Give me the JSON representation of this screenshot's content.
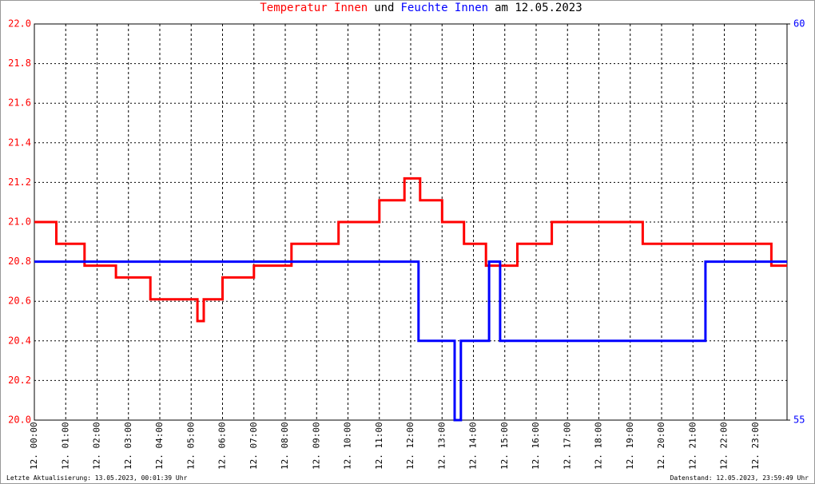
{
  "chart_data": {
    "type": "line",
    "title_parts": [
      {
        "text": "Temperatur Innen",
        "color": "#ff0000"
      },
      {
        "text": "und",
        "color": "#000000"
      },
      {
        "text": "Feuchte Innen",
        "color": "#0000ff"
      },
      {
        "text": "am 12.05.2023",
        "color": "#000000"
      }
    ],
    "footer_left": "Letzte Aktualisierung: 13.05.2023, 00:01:39 Uhr",
    "footer_right": "Datenstand: 12.05.2023, 23:59:49 Uhr",
    "grid": true,
    "xlim": [
      0,
      24
    ],
    "xticks": [
      {
        "value": 0,
        "label": "12. 00:00"
      },
      {
        "value": 1,
        "label": "12. 01:00"
      },
      {
        "value": 2,
        "label": "12. 02:00"
      },
      {
        "value": 3,
        "label": "12. 03:00"
      },
      {
        "value": 4,
        "label": "12. 04:00"
      },
      {
        "value": 5,
        "label": "12. 05:00"
      },
      {
        "value": 6,
        "label": "12. 06:00"
      },
      {
        "value": 7,
        "label": "12. 07:00"
      },
      {
        "value": 8,
        "label": "12. 08:00"
      },
      {
        "value": 9,
        "label": "12. 09:00"
      },
      {
        "value": 10,
        "label": "12. 10:00"
      },
      {
        "value": 11,
        "label": "12. 11:00"
      },
      {
        "value": 12,
        "label": "12. 12:00"
      },
      {
        "value": 13,
        "label": "12. 13:00"
      },
      {
        "value": 14,
        "label": "12. 14:00"
      },
      {
        "value": 15,
        "label": "12. 15:00"
      },
      {
        "value": 16,
        "label": "12. 16:00"
      },
      {
        "value": 17,
        "label": "12. 17:00"
      },
      {
        "value": 18,
        "label": "12. 18:00"
      },
      {
        "value": 19,
        "label": "12. 19:00"
      },
      {
        "value": 20,
        "label": "12. 20:00"
      },
      {
        "value": 21,
        "label": "12. 21:00"
      },
      {
        "value": 22,
        "label": "12. 22:00"
      },
      {
        "value": 23,
        "label": "12. 23:00"
      }
    ],
    "ylim": [
      20,
      22
    ],
    "yticks": [
      {
        "value": 20,
        "label": "20.0"
      },
      20.2,
      20.4,
      20.6,
      20.8,
      {
        "value": 21,
        "label": "21.0"
      },
      21.2,
      21.4,
      21.6,
      21.8,
      {
        "value": 22,
        "label": "22.0"
      }
    ],
    "y_color": "#ff0000",
    "y2lim": [
      55,
      60
    ],
    "y2ticks": [
      55,
      60
    ],
    "y2_color": "#0000ff",
    "series": [
      {
        "name": "Temperatur Innen",
        "color": "#ff0000",
        "x": [
          0,
          0.7,
          0.7,
          1.6,
          1.6,
          2.6,
          2.6,
          3.7,
          3.7,
          5.2,
          5.2,
          5.4,
          5.4,
          6.0,
          6.0,
          7.0,
          7.0,
          8.2,
          8.2,
          9.7,
          9.7,
          11.0,
          11.0,
          11.8,
          11.8,
          12.3,
          12.3,
          13.0,
          13.0,
          13.7,
          13.7,
          14.4,
          14.4,
          15.4,
          15.4,
          16.5,
          16.5,
          19.4,
          19.4,
          23.5,
          23.5,
          24
        ],
        "values": [
          21.0,
          21.0,
          20.89,
          20.89,
          20.78,
          20.78,
          20.72,
          20.72,
          20.61,
          20.61,
          20.5,
          20.5,
          20.61,
          20.61,
          20.72,
          20.72,
          20.78,
          20.78,
          20.89,
          20.89,
          21.0,
          21.0,
          21.11,
          21.11,
          21.22,
          21.22,
          21.11,
          21.11,
          21.0,
          21.0,
          20.89,
          20.89,
          20.78,
          20.78,
          20.89,
          20.89,
          21.0,
          21.0,
          20.89,
          20.89,
          20.78,
          20.78
        ]
      },
      {
        "name": "Feuchte Innen",
        "color": "#0000ff",
        "axis": "y2",
        "x": [
          0,
          12.25,
          12.25,
          13.4,
          13.4,
          13.6,
          13.6,
          14.5,
          14.5,
          14.85,
          14.85,
          21.4,
          21.4,
          24
        ],
        "values": [
          57,
          57,
          56,
          56,
          55,
          55,
          56,
          56,
          57,
          57,
          56,
          56,
          57,
          57
        ]
      }
    ]
  }
}
